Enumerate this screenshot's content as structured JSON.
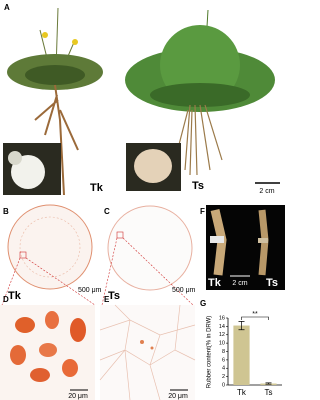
{
  "panels": {
    "A": {
      "label": "A",
      "left": "Tk",
      "right": "Ts",
      "scale": "2 cm"
    },
    "B": {
      "label": "B",
      "sample": "Tk",
      "scale": "500 μm"
    },
    "C": {
      "label": "C",
      "sample": "Ts",
      "scale": "500 μm"
    },
    "D": {
      "label": "D",
      "scale": "20 μm"
    },
    "E": {
      "label": "E",
      "scale": "20 μm"
    },
    "F": {
      "label": "F",
      "left": "Tk",
      "scale": "2 cm",
      "right": "Ts"
    },
    "G": {
      "label": "G"
    }
  },
  "chart_data": {
    "type": "bar",
    "y_label": "Rubber content(% in DRW)",
    "annotation": "**",
    "categories": [
      "Tk",
      "Ts"
    ],
    "values": [
      14.2,
      0.35
    ],
    "errors": [
      1.0,
      0.15
    ],
    "color": "#cfc592",
    "ylim": [
      0,
      16
    ],
    "yticks": [
      0,
      2,
      4,
      6,
      8,
      10,
      12,
      14,
      16
    ]
  }
}
